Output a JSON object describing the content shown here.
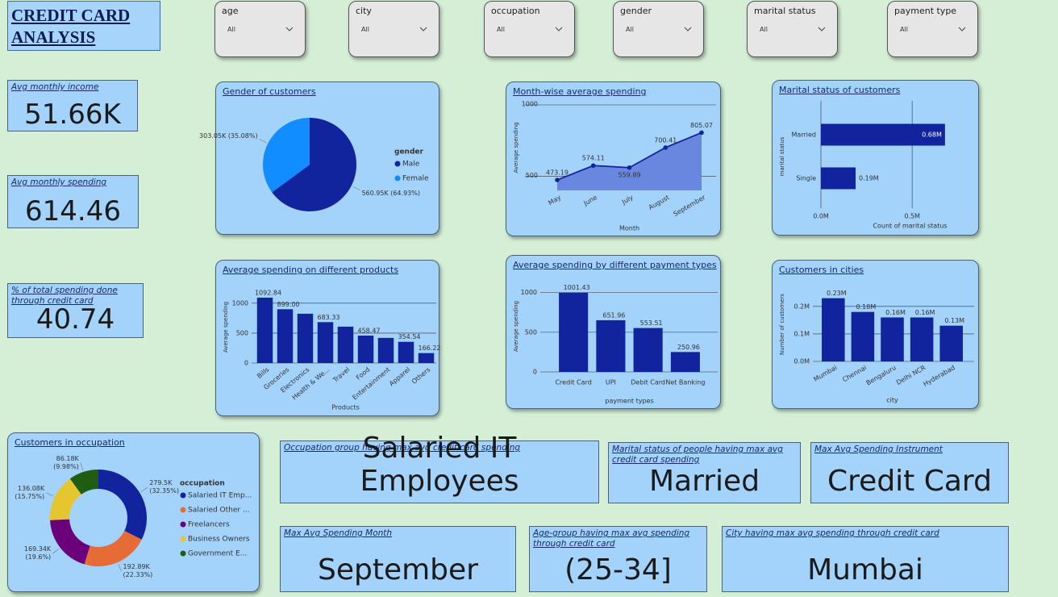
{
  "title": "CREDIT CARD ANALYSIS",
  "filters": [
    {
      "label": "age",
      "value": "All"
    },
    {
      "label": "city",
      "value": "All"
    },
    {
      "label": "occupation",
      "value": "All"
    },
    {
      "label": "gender",
      "value": "All"
    },
    {
      "label": "marital status",
      "value": "All"
    },
    {
      "label": "payment type",
      "value": "All"
    }
  ],
  "kpis": [
    {
      "label": "Avg monthly income",
      "value": "51.66K"
    },
    {
      "label": "Avg monthly spending",
      "value": "614.46"
    },
    {
      "label": "% of total spending done through credit card",
      "value": "40.74"
    }
  ],
  "highlights": [
    {
      "label": "Occupation group having max avg credit card spending",
      "value": "Salaried IT Employees"
    },
    {
      "label": "Marital status of people having max avg credit card spending",
      "value": "Married"
    },
    {
      "label": "Max Avg Spending Instrument",
      "value": "Credit Card"
    },
    {
      "label": "Max Avg Spending Month",
      "value": "September"
    },
    {
      "label": "Age-group having max avg spending through credit card",
      "value": "(25-34]"
    },
    {
      "label": "City having max avg spending through credit card",
      "value": "Mumbai"
    }
  ],
  "chart_data": [
    {
      "type": "pie",
      "title": "Gender of customers",
      "legend_title": "gender",
      "categories": [
        "Male",
        "Female"
      ],
      "values": [
        560950,
        303050
      ],
      "value_labels": [
        "560.95K (64.93%)",
        "303.05K (35.08%)"
      ],
      "colors": [
        "#12239e",
        "#118dff"
      ]
    },
    {
      "type": "line",
      "title": "Month-wise average spending",
      "x_label": "Month",
      "y_label": "Average spending",
      "categories": [
        "May",
        "June",
        "July",
        "August",
        "September"
      ],
      "values": [
        473.19,
        574.11,
        559.89,
        700.41,
        805.07
      ],
      "color": "#12239e",
      "area_color": "#6a87e0",
      "ylim": [
        400,
        1000
      ],
      "yticks": [
        500,
        1000
      ],
      "grid": true
    },
    {
      "type": "bar",
      "orientation": "horizontal",
      "title": "Marital status of customers",
      "x_label": "Count of marital status",
      "y_label": "marital status",
      "categories": [
        "Married",
        "Single"
      ],
      "values": [
        680000,
        190000
      ],
      "value_labels": [
        "0.68M",
        "0.19M"
      ],
      "color": "#12239e",
      "xlim": [
        0,
        800000
      ],
      "xticks": [
        {
          "value": 0,
          "label": "0.0M"
        },
        {
          "value": 500000,
          "label": "0.5M"
        }
      ],
      "grid": true
    },
    {
      "type": "bar",
      "title": "Average spending on different products",
      "x_label": "Products",
      "y_label": "Average spending",
      "categories": [
        "Bills",
        "Groceries",
        "Electronics",
        "Health & We...",
        "Travel",
        "Food",
        "Entertainment",
        "Apparel",
        "Others"
      ],
      "values": [
        1092.84,
        899.0,
        824,
        683.33,
        608,
        458.47,
        420,
        354.54,
        166.22
      ],
      "value_labels": [
        "1092.84",
        "899.00",
        null,
        "683.33",
        null,
        "458.47",
        null,
        "354.54",
        "166.22"
      ],
      "color": "#12239e",
      "ylim": [
        0,
        1200
      ],
      "yticks": [
        0,
        500,
        1000
      ],
      "grid": true
    },
    {
      "type": "bar",
      "title": "Average spending by different payment types",
      "x_label": "payment types",
      "y_label": "Average spending",
      "categories": [
        "Credit Card",
        "UPI",
        "Debit Card",
        "Net Banking"
      ],
      "values": [
        1001.43,
        651.96,
        553.51,
        250.96
      ],
      "color": "#12239e",
      "ylim": [
        0,
        1150
      ],
      "yticks": [
        0,
        500,
        1000
      ],
      "grid": true
    },
    {
      "type": "bar",
      "title": "Customers in cities",
      "x_label": "city",
      "y_label": "Number of customers",
      "categories": [
        "Mumbai",
        "Chennai",
        "Bengaluru",
        "Delhi NCR",
        "Hyderabad"
      ],
      "values": [
        230000,
        180000,
        160000,
        160000,
        130000
      ],
      "value_labels": [
        "0.23M",
        "0.18M",
        "0.16M",
        "0.16M",
        "0.13M"
      ],
      "color": "#12239e",
      "ylim": [
        0,
        270000
      ],
      "yticks": [
        {
          "value": 0,
          "label": "0.0M"
        },
        {
          "value": 100000,
          "label": "0.1M"
        },
        {
          "value": 200000,
          "label": "0.2M"
        }
      ],
      "grid": true
    },
    {
      "type": "donut",
      "title": "Customers in occupation",
      "legend_title": "occupation",
      "categories": [
        "Salaried IT Emp...",
        "Salaried Other ...",
        "Freelancers",
        "Business Owners",
        "Government E..."
      ],
      "values": [
        279500,
        192890,
        169340,
        136080,
        86180
      ],
      "value_labels": [
        "279.5K (32.35%)",
        "192.89K (22.33%)",
        "169.34K (19.6%)",
        "136.08K (15.75%)",
        "86.18K (9.98%)"
      ],
      "colors": [
        "#12239e",
        "#e66c37",
        "#6b007b",
        "#e6c62f",
        "#1f5e12"
      ]
    }
  ]
}
